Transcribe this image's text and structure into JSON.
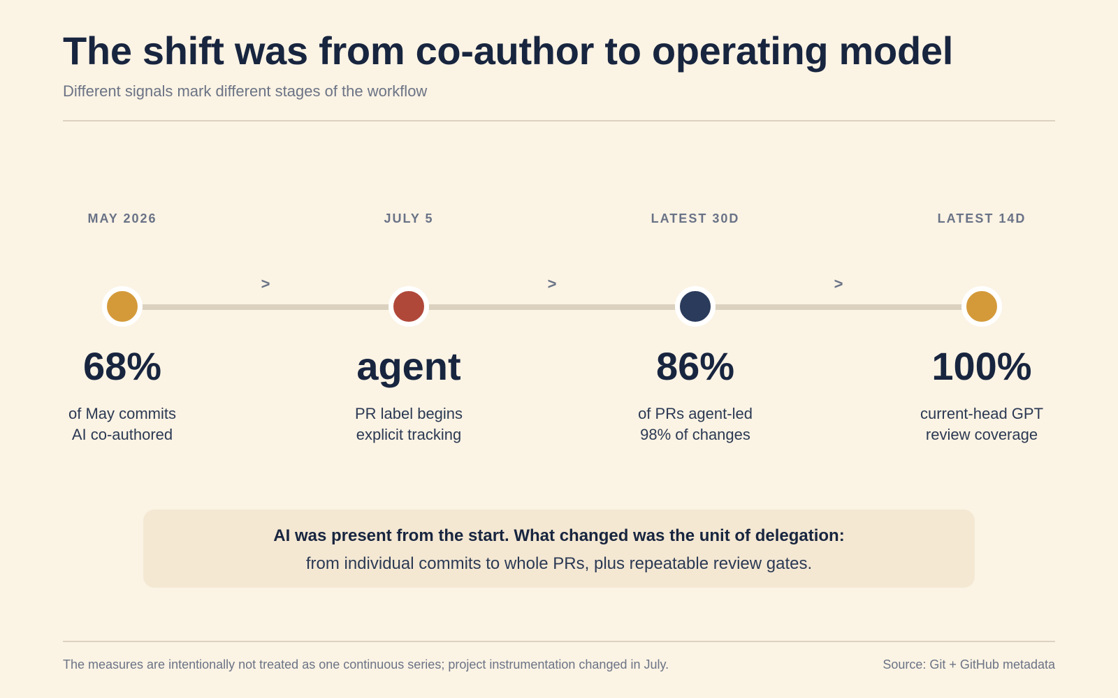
{
  "header": {
    "title": "The shift was from co-author to operating model",
    "subtitle": "Different signals mark different stages of the workflow"
  },
  "arrow_symbol": ">",
  "colors": {
    "background": "#fbf3e4",
    "gold": "#d49a3a",
    "red": "#b0483a",
    "navy": "#2a3b5c",
    "track": "#dbd1bf"
  },
  "stages": [
    {
      "label": "MAY 2026",
      "value": "68%",
      "desc_line1": "of May commits",
      "desc_line2": "AI co-authored",
      "color": "#d49a3a"
    },
    {
      "label": "JULY 5",
      "value": "agent",
      "desc_line1": "PR label begins",
      "desc_line2": "explicit tracking",
      "color": "#b0483a"
    },
    {
      "label": "LATEST 30D",
      "value": "86%",
      "desc_line1": "of PRs agent-led",
      "desc_line2": "98% of changes",
      "color": "#2a3b5c"
    },
    {
      "label": "LATEST 14D",
      "value": "100%",
      "desc_line1": "current-head GPT",
      "desc_line2": "review coverage",
      "color": "#d49a3a"
    }
  ],
  "callout": {
    "strong": "AI was present from the start. What changed was the unit of delegation:",
    "text": "from individual commits to whole PRs, plus repeatable review gates."
  },
  "footer": {
    "note": "The measures are intentionally not treated as one continuous series; project instrumentation changed in July.",
    "source": "Source: Git + GitHub metadata"
  }
}
